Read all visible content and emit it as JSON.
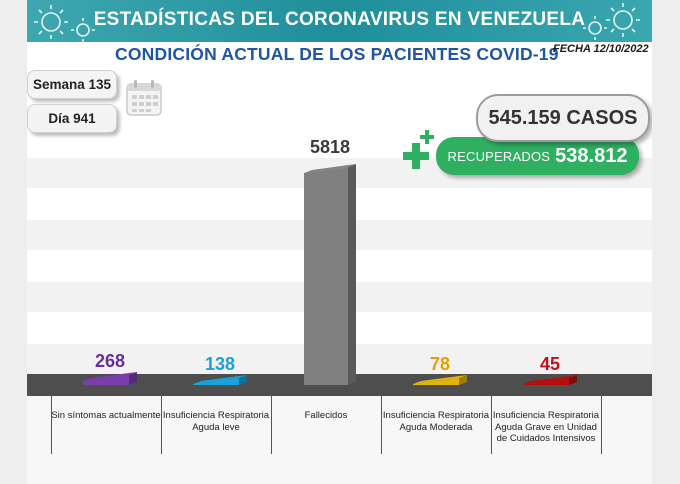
{
  "header": {
    "title": "ESTADÍSTICAS DEL CORONAVIRUS EN VENEZUELA"
  },
  "subtitle": "CONDICIÓN ACTUAL DE LOS PACIENTES COVID-19",
  "date": "FECHA 12/10/2022",
  "week": "Semana 135",
  "day": "Día 941",
  "cases": "545.159 CASOS",
  "recovered": {
    "label": "RECUPERADOS",
    "value": "538.812"
  },
  "chart_data": {
    "type": "bar",
    "categories": [
      "Sin síntomas actualmente",
      "Insuficiencia Respiratoria Aguda leve",
      "Fallecidos",
      "Insuficiencia Respiratoria Aguda Moderada",
      "Insuficiencia Respiratoria Aguda Grave en Unidad de Cuidados Intensivos"
    ],
    "values": [
      268,
      138,
      5818,
      78,
      45
    ],
    "value_labels": [
      "268",
      "138",
      "5818",
      "78",
      "45"
    ],
    "colors": [
      "#7a3dab",
      "#1aa3db",
      "#808080",
      "#e2b40d",
      "#b50e0e"
    ],
    "label_colors": [
      "#6a2f9a",
      "#1f9fd6",
      "#3a3a3a",
      "#e0a106",
      "#c0121e"
    ],
    "ylim": [
      0,
      5818
    ],
    "grid": false,
    "legend": "none"
  }
}
